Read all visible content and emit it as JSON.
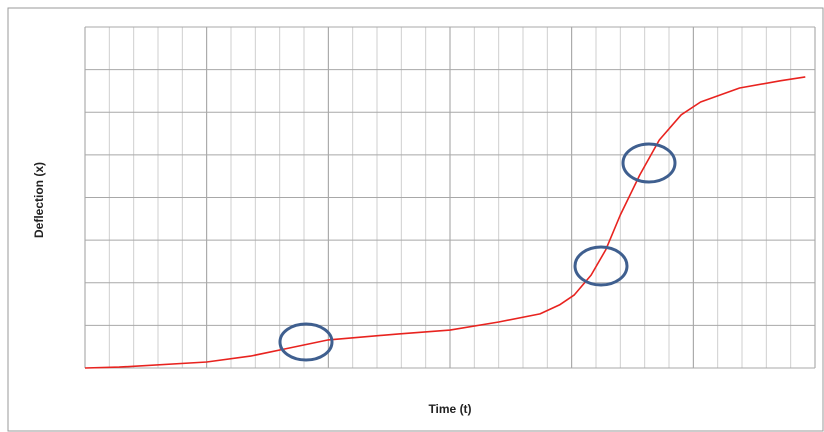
{
  "chart_data": {
    "type": "line",
    "x_label": "Time (t)",
    "y_label": "Deflection (x)",
    "x": [
      0,
      1.4,
      5,
      6.8,
      8.4,
      10,
      12.9,
      15,
      17,
      18.7,
      19.5,
      20.1,
      20.8,
      21.4,
      22,
      22.8,
      23.6,
      24.5,
      25.3,
      26.9,
      28.6,
      29.6
    ],
    "series": [
      {
        "color": "#e8231f",
        "values": [
          0,
          0.02,
          0.14,
          0.28,
          0.47,
          0.66,
          0.8,
          0.89,
          1.08,
          1.27,
          1.48,
          1.71,
          2.18,
          2.77,
          3.59,
          4.53,
          5.35,
          5.94,
          6.24,
          6.57,
          6.74,
          6.83
        ]
      }
    ],
    "xlim": [
      0,
      30
    ],
    "ylim": [
      0,
      8
    ],
    "xticks": [
      0,
      1,
      2,
      3,
      4,
      5,
      6,
      7,
      8,
      9,
      10,
      11,
      12,
      13,
      14,
      15,
      16,
      17,
      18,
      19,
      20,
      21,
      22,
      23,
      24,
      25,
      26,
      27,
      28,
      29,
      30
    ],
    "yticks": [
      0,
      1,
      2,
      3,
      4,
      5,
      6,
      7,
      8
    ],
    "grid": true
  }
}
